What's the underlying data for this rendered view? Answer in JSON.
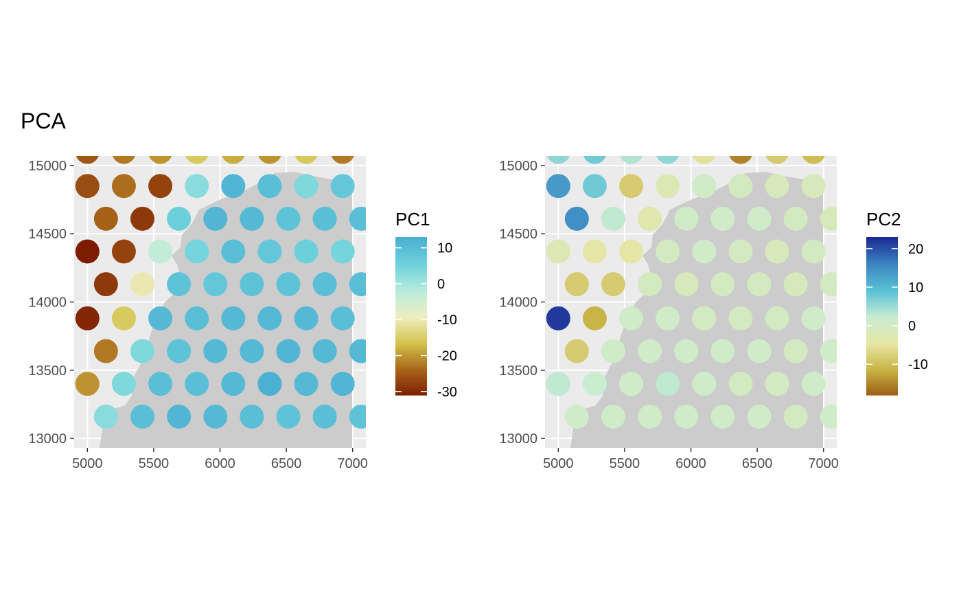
{
  "title": "PCA",
  "chart_data": [
    {
      "type": "scatter",
      "panel": "left",
      "xlim": [
        4900,
        7100
      ],
      "ylim": [
        12930,
        15070
      ],
      "x_ticks": [
        5000,
        5500,
        6000,
        6500,
        7000
      ],
      "y_ticks": [
        13000,
        13500,
        14000,
        14500,
        15000
      ],
      "grid": true,
      "legend": {
        "title": "PC1",
        "placement": "right",
        "range": [
          -31,
          13
        ],
        "ticks": [
          10,
          0,
          -10,
          -20,
          -30
        ],
        "gradient": [
          "#7c1c00",
          "#a8641a",
          "#d2c24a",
          "#eeeec0",
          "#b8ecdc",
          "#6ed2dc",
          "#4cb0d2"
        ]
      },
      "tissue_color": "#cccccc",
      "panel_bg": "#ebebeb",
      "rows": [
        {
          "y": 15100,
          "x0": 5000,
          "values": [
            -25,
            -22,
            -20,
            -15,
            -18,
            -20,
            -15,
            -22
          ]
        },
        {
          "y": 14850,
          "x0": 5000,
          "values": [
            -26,
            -23,
            -27,
            3,
            12,
            10,
            4,
            8
          ]
        },
        {
          "y": 14610,
          "x0": 5140,
          "values": [
            -24,
            -28,
            6,
            12,
            11,
            9,
            10,
            10
          ]
        },
        {
          "y": 14370,
          "x0": 5000,
          "values": [
            -31,
            -27,
            -3,
            5,
            10,
            8,
            6,
            5
          ]
        },
        {
          "y": 14130,
          "x0": 5140,
          "values": [
            -28,
            -10,
            9,
            8,
            9,
            9,
            10,
            10
          ]
        },
        {
          "y": 13880,
          "x0": 5000,
          "values": [
            -30,
            -15,
            11,
            10,
            11,
            11,
            11,
            10
          ]
        },
        {
          "y": 13640,
          "x0": 5140,
          "values": [
            -22,
            4,
            9,
            11,
            11,
            12,
            11,
            11
          ]
        },
        {
          "y": 13400,
          "x0": 5000,
          "values": [
            -20,
            4,
            10,
            10,
            11,
            13,
            11,
            12
          ]
        },
        {
          "y": 13160,
          "x0": 5140,
          "values": [
            3,
            10,
            12,
            11,
            10,
            9,
            10,
            9
          ]
        }
      ]
    },
    {
      "type": "scatter",
      "panel": "right",
      "xlim": [
        4900,
        7100
      ],
      "ylim": [
        12930,
        15070
      ],
      "x_ticks": [
        5000,
        5500,
        6000,
        6500,
        7000
      ],
      "y_ticks": [
        13000,
        13500,
        14000,
        14500,
        15000
      ],
      "grid": true,
      "legend": {
        "title": "PC2",
        "placement": "right",
        "range": [
          -18,
          23
        ],
        "ticks": [
          20,
          10,
          0,
          -10
        ],
        "gradient": [
          "#9c5a14",
          "#c8b444",
          "#e6e6a4",
          "#c8ecd2",
          "#5ac2d6",
          "#3c86c2",
          "#1c2c96"
        ]
      },
      "tissue_color": "#cccccc",
      "panel_bg": "#ebebeb",
      "rows": [
        {
          "y": 15100,
          "x0": 5000,
          "values": [
            6,
            8,
            4,
            6,
            -5,
            -15,
            -8,
            -10
          ]
        },
        {
          "y": 14850,
          "x0": 5000,
          "values": [
            14,
            8,
            -8,
            -2,
            1,
            0,
            -1,
            -1
          ]
        },
        {
          "y": 14610,
          "x0": 5140,
          "values": [
            15,
            3,
            -3,
            1,
            1,
            1,
            0,
            -1
          ]
        },
        {
          "y": 14370,
          "x0": 5000,
          "values": [
            -2,
            -4,
            -4,
            0,
            1,
            0,
            -1,
            0
          ]
        },
        {
          "y": 14130,
          "x0": 5140,
          "values": [
            -8,
            -8,
            0,
            -1,
            0,
            0,
            -1,
            0
          ]
        },
        {
          "y": 13880,
          "x0": 5000,
          "values": [
            22,
            -11,
            1,
            1,
            0,
            0,
            0,
            1
          ]
        },
        {
          "y": 13640,
          "x0": 5140,
          "values": [
            -8,
            1,
            1,
            1,
            1,
            1,
            0,
            1
          ]
        },
        {
          "y": 13400,
          "x0": 5000,
          "values": [
            3,
            2,
            1,
            3,
            1,
            0,
            0,
            1
          ]
        },
        {
          "y": 13160,
          "x0": 5140,
          "values": [
            1,
            1,
            1,
            1,
            1,
            1,
            0,
            1
          ]
        }
      ]
    }
  ]
}
